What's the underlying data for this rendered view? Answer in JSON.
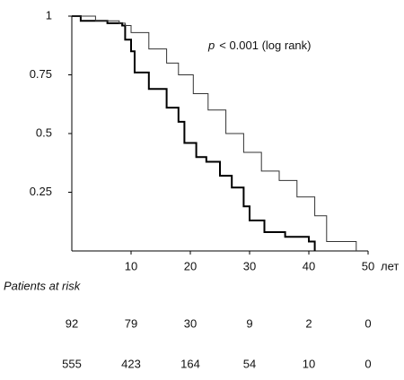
{
  "chart_data": {
    "type": "line",
    "step": true,
    "annotation": {
      "variable": "p",
      "text": "< 0.001 (log rank)"
    },
    "x_unit": "лет",
    "xlim": [
      0,
      50
    ],
    "xticks": [
      10,
      20,
      30,
      40,
      50
    ],
    "ylim": [
      0,
      1
    ],
    "yticks": [
      0.25,
      0.5,
      0.75,
      1
    ],
    "grid": false,
    "series": [
      {
        "color": "#000000",
        "line_width": 2,
        "x": [
          0,
          1.5,
          6,
          8.5,
          9,
          10,
          10.6,
          13,
          16,
          18,
          19,
          21,
          22.7,
          25,
          27,
          29,
          30,
          32.5,
          36,
          40,
          41
        ],
        "values": [
          1,
          0.98,
          0.97,
          0.96,
          0.9,
          0.85,
          0.76,
          0.69,
          0.61,
          0.55,
          0.46,
          0.4,
          0.38,
          0.32,
          0.27,
          0.19,
          0.13,
          0.08,
          0.06,
          0.04,
          0
        ]
      },
      {
        "color": "#333333",
        "line_width": 1,
        "x": [
          0,
          4,
          8,
          9,
          10,
          13,
          16,
          18,
          20.5,
          23,
          26,
          29,
          32,
          35,
          38,
          41,
          43,
          48
        ],
        "values": [
          1,
          0.98,
          0.97,
          0.96,
          0.93,
          0.86,
          0.8,
          0.75,
          0.67,
          0.6,
          0.5,
          0.42,
          0.34,
          0.3,
          0.23,
          0.15,
          0.04,
          0
        ]
      }
    ],
    "risk_table": {
      "title": "Patients at risk",
      "rows": [
        [
          92,
          79,
          30,
          9,
          2,
          0
        ],
        [
          555,
          423,
          164,
          54,
          10,
          0
        ]
      ]
    }
  }
}
